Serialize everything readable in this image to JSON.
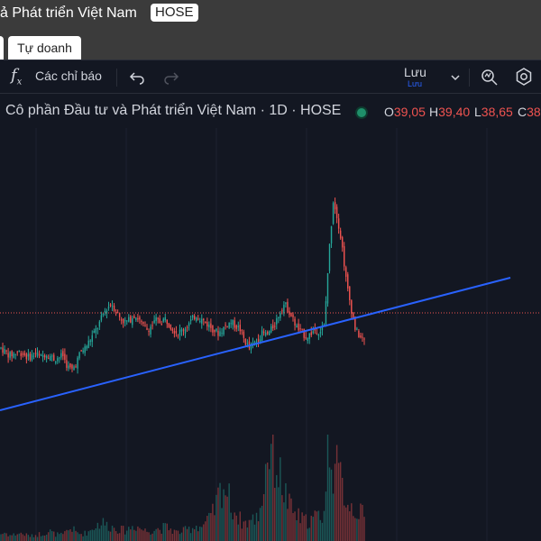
{
  "header": {
    "title": "ả Phát triển Việt Nam",
    "exchange": "HOSE",
    "tab_active": "Tự doanh"
  },
  "toolbar": {
    "indicators_label": "Các chỉ báo",
    "save_label": "Lưu",
    "save_sub": "Lưu"
  },
  "legend": {
    "symbol_title": "Cô phần Đầu tư và Phát triển Việt Nam · 1D · HOSE",
    "open_label": "O",
    "open": "39,05",
    "high_label": "H",
    "high": "39,40",
    "low_label": "L",
    "low": "38,65",
    "close_label": "C",
    "close": "38"
  },
  "colors": {
    "background": "#131722",
    "up": "#26a69a",
    "down": "#ef5350",
    "trendline": "#2962ff"
  },
  "chart_data": {
    "type": "candlestick",
    "interval": "1D",
    "price_path": [
      40,
      38,
      36,
      37,
      38,
      37,
      35,
      36,
      37,
      35,
      37,
      36,
      34,
      35,
      36,
      30,
      28,
      32,
      38,
      40,
      44,
      48,
      52,
      58,
      62,
      64,
      60,
      56,
      54,
      55,
      58,
      56,
      52,
      50,
      52,
      55,
      54,
      56,
      53,
      50,
      48,
      50,
      52,
      55,
      58,
      56,
      54,
      52,
      50,
      48,
      50,
      53,
      54,
      52,
      50,
      44,
      40,
      42,
      45,
      48,
      47,
      50,
      54,
      60,
      64,
      60,
      55,
      50,
      48,
      46,
      48,
      50,
      49,
      52,
      90,
      120,
      110,
      95,
      75,
      62,
      50,
      46,
      44
    ],
    "volume_path": [
      10,
      12,
      8,
      9,
      11,
      10,
      8,
      7,
      9,
      10,
      12,
      14,
      10,
      9,
      8,
      15,
      18,
      12,
      10,
      11,
      14,
      20,
      24,
      26,
      22,
      20,
      18,
      16,
      15,
      18,
      22,
      20,
      16,
      14,
      15,
      18,
      16,
      20,
      18,
      14,
      12,
      14,
      16,
      18,
      22,
      20,
      24,
      30,
      40,
      60,
      80,
      70,
      50,
      40,
      30,
      25,
      28,
      30,
      35,
      60,
      120,
      140,
      110,
      90,
      70,
      50,
      40,
      35,
      30,
      28,
      30,
      34,
      36,
      40,
      150,
      110,
      95,
      80,
      60,
      50,
      45,
      40,
      35
    ],
    "trendline": [
      [
        0.0,
        0.0
      ],
      [
        1.0,
        0.55
      ]
    ]
  }
}
